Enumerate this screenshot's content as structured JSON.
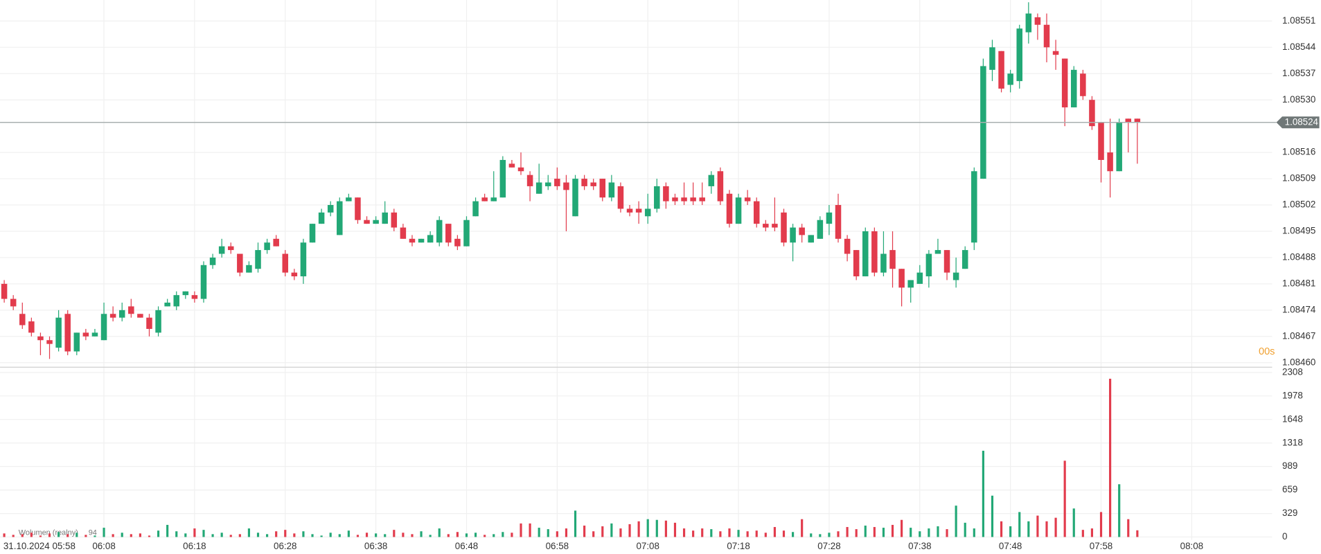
{
  "chart_data": [
    {
      "type": "candlestick",
      "up_color": "#22a876",
      "down_color": "#e23b4c",
      "ylim": [
        1.084588,
        1.085566
      ],
      "yticks": [
        {
          "value": 1.0846,
          "label": "1.08460"
        },
        1.08467,
        1.08474,
        1.08481,
        1.08488,
        1.08495,
        1.08502,
        1.08509,
        1.08516,
        {
          "value": 1.0853,
          "label": "1.08530"
        },
        1.08537,
        1.08544,
        1.08551
      ],
      "xticks": [
        {
          "value": 11,
          "label": "06:08"
        },
        {
          "value": 21,
          "label": "06:18"
        },
        {
          "value": 31,
          "label": "06:28"
        },
        {
          "value": 41,
          "label": "06:38"
        },
        {
          "value": 51,
          "label": "06:48"
        },
        {
          "value": 61,
          "label": "06:58"
        },
        {
          "value": 71,
          "label": "07:08"
        },
        {
          "value": 81,
          "label": "07:18"
        },
        {
          "value": 91,
          "label": "07:28"
        },
        {
          "value": 101,
          "label": "07:38"
        },
        {
          "value": 111,
          "label": "07:48"
        },
        {
          "value": 121,
          "label": "07:58"
        },
        {
          "value": 131,
          "label": "08:08"
        }
      ],
      "grid": true,
      "last_price": 1.08524,
      "countdown": "00s",
      "date_label": "31.10.2024 05:58",
      "ohlc": [
        [
          1.08481,
          1.08482,
          1.08476,
          1.08477
        ],
        [
          1.08477,
          1.08478,
          1.08474,
          1.08475
        ],
        [
          1.08473,
          1.08476,
          1.08469,
          1.0847
        ],
        [
          1.08471,
          1.08472,
          1.08467,
          1.08468
        ],
        [
          1.08467,
          1.08468,
          1.08462,
          1.08466
        ],
        [
          1.08466,
          1.08467,
          1.08461,
          1.08465
        ],
        [
          1.08464,
          1.08474,
          1.08463,
          1.08472
        ],
        [
          1.08473,
          1.08474,
          1.08462,
          1.08463
        ],
        [
          1.08463,
          1.08468,
          1.08462,
          1.08468
        ],
        [
          1.08468,
          1.08469,
          1.08466,
          1.08467
        ],
        [
          1.08467,
          1.08469,
          1.08467,
          1.08468
        ],
        [
          1.08466,
          1.08476,
          1.08466,
          1.08473
        ],
        [
          1.08473,
          1.08475,
          1.08471,
          1.08472
        ],
        [
          1.08472,
          1.08476,
          1.08471,
          1.08474
        ],
        [
          1.08475,
          1.08477,
          1.08472,
          1.08473
        ],
        [
          1.08473,
          1.08473,
          1.08472,
          1.08472
        ],
        [
          1.08472,
          1.08473,
          1.08467,
          1.08469
        ],
        [
          1.08468,
          1.08475,
          1.08467,
          1.08474
        ],
        [
          1.08475,
          1.08477,
          1.08475,
          1.08476
        ],
        [
          1.08475,
          1.08479,
          1.08474,
          1.08478
        ],
        [
          1.08478,
          1.08479,
          1.08477,
          1.08479
        ],
        [
          1.08478,
          1.08479,
          1.08476,
          1.08477
        ],
        [
          1.08477,
          1.08487,
          1.08476,
          1.08486
        ],
        [
          1.08486,
          1.08489,
          1.08485,
          1.08488
        ],
        [
          1.08489,
          1.08493,
          1.08488,
          1.08491
        ],
        [
          1.08491,
          1.08492,
          1.08489,
          1.0849
        ],
        [
          1.08489,
          1.08489,
          1.08483,
          1.08484
        ],
        [
          1.08484,
          1.08487,
          1.08484,
          1.08486
        ],
        [
          1.08485,
          1.08492,
          1.08484,
          1.0849
        ],
        [
          1.0849,
          1.08493,
          1.08489,
          1.08492
        ],
        [
          1.08493,
          1.08494,
          1.08491,
          1.08491
        ],
        [
          1.08489,
          1.0849,
          1.08483,
          1.08484
        ],
        [
          1.08484,
          1.08485,
          1.08482,
          1.08483
        ],
        [
          1.08483,
          1.08493,
          1.08481,
          1.08492
        ],
        [
          1.08492,
          1.08497,
          1.08492,
          1.08497
        ],
        [
          1.08497,
          1.08501,
          1.08497,
          1.085
        ],
        [
          1.085,
          1.08503,
          1.08499,
          1.08502
        ],
        [
          1.08494,
          1.08504,
          1.08494,
          1.08503
        ],
        [
          1.08503,
          1.08505,
          1.08503,
          1.08504
        ],
        [
          1.08504,
          1.08504,
          1.08497,
          1.08498
        ],
        [
          1.08498,
          1.08499,
          1.08497,
          1.08497
        ],
        [
          1.08497,
          1.08499,
          1.08497,
          1.08498
        ],
        [
          1.08497,
          1.08503,
          1.08497,
          1.085
        ],
        [
          1.085,
          1.08501,
          1.08495,
          1.08496
        ],
        [
          1.08496,
          1.08497,
          1.08493,
          1.08493
        ],
        [
          1.08493,
          1.08494,
          1.08491,
          1.08492
        ],
        [
          1.08492,
          1.08493,
          1.08492,
          1.08493
        ],
        [
          1.08492,
          1.08495,
          1.08492,
          1.08494
        ],
        [
          1.08492,
          1.08499,
          1.08491,
          1.08498
        ],
        [
          1.08497,
          1.08497,
          1.08491,
          1.08492
        ],
        [
          1.08493,
          1.08494,
          1.0849,
          1.08491
        ],
        [
          1.08491,
          1.08499,
          1.08491,
          1.08498
        ],
        [
          1.08499,
          1.08504,
          1.08499,
          1.08503
        ],
        [
          1.08504,
          1.08505,
          1.08503,
          1.08503
        ],
        [
          1.08503,
          1.08511,
          1.08503,
          1.08504
        ],
        [
          1.08504,
          1.08515,
          1.08504,
          1.08514
        ],
        [
          1.08513,
          1.08514,
          1.08512,
          1.08512
        ],
        [
          1.08512,
          1.08516,
          1.0851,
          1.08511
        ],
        [
          1.0851,
          1.08511,
          1.08503,
          1.08507
        ],
        [
          1.08505,
          1.08513,
          1.08505,
          1.08508
        ],
        [
          1.08507,
          1.0851,
          1.08506,
          1.08508
        ],
        [
          1.08509,
          1.08512,
          1.08506,
          1.08507
        ],
        [
          1.08508,
          1.0851,
          1.08495,
          1.08506
        ],
        [
          1.08499,
          1.0851,
          1.08499,
          1.08509
        ],
        [
          1.08509,
          1.0851,
          1.08506,
          1.08507
        ],
        [
          1.08508,
          1.08509,
          1.08506,
          1.08507
        ],
        [
          1.08509,
          1.08509,
          1.08503,
          1.08504
        ],
        [
          1.08504,
          1.0851,
          1.08503,
          1.08508
        ],
        [
          1.08507,
          1.08508,
          1.085,
          1.08501
        ],
        [
          1.08501,
          1.08502,
          1.08499,
          1.085
        ],
        [
          1.08501,
          1.08503,
          1.08497,
          1.085
        ],
        [
          1.08499,
          1.08505,
          1.08497,
          1.08501
        ],
        [
          1.08501,
          1.08509,
          1.085,
          1.08507
        ],
        [
          1.08507,
          1.08508,
          1.08501,
          1.08503
        ],
        [
          1.08504,
          1.08505,
          1.08502,
          1.08503
        ],
        [
          1.08504,
          1.08508,
          1.08502,
          1.08503
        ],
        [
          1.08504,
          1.08508,
          1.08502,
          1.08503
        ],
        [
          1.08504,
          1.08508,
          1.08502,
          1.08503
        ],
        [
          1.08507,
          1.08511,
          1.08505,
          1.0851
        ],
        [
          1.08511,
          1.08512,
          1.08502,
          1.08503
        ],
        [
          1.08505,
          1.08506,
          1.08496,
          1.08497
        ],
        [
          1.08497,
          1.08505,
          1.08497,
          1.08504
        ],
        [
          1.08504,
          1.08506,
          1.08502,
          1.08503
        ],
        [
          1.08503,
          1.08504,
          1.08496,
          1.08497
        ],
        [
          1.08497,
          1.08498,
          1.08495,
          1.08496
        ],
        [
          1.08497,
          1.08504,
          1.08495,
          1.08496
        ],
        [
          1.085,
          1.08501,
          1.08491,
          1.08492
        ],
        [
          1.08492,
          1.08497,
          1.08487,
          1.08496
        ],
        [
          1.08496,
          1.08497,
          1.08492,
          1.08494
        ],
        [
          1.08492,
          1.08494,
          1.08492,
          1.08494
        ],
        [
          1.08493,
          1.08499,
          1.08493,
          1.08498
        ],
        [
          1.08497,
          1.08502,
          1.08494,
          1.085
        ],
        [
          1.08502,
          1.08505,
          1.08492,
          1.08493
        ],
        [
          1.08493,
          1.08494,
          1.08487,
          1.08489
        ],
        [
          1.0849,
          1.0849,
          1.08482,
          1.08483
        ],
        [
          1.08483,
          1.08496,
          1.08483,
          1.08495
        ],
        [
          1.08495,
          1.08496,
          1.08483,
          1.08484
        ],
        [
          1.08484,
          1.08495,
          1.08483,
          1.08489
        ],
        [
          1.0849,
          1.08495,
          1.0848,
          1.08485
        ],
        [
          1.08485,
          1.08485,
          1.08475,
          1.0848
        ],
        [
          1.0848,
          1.08482,
          1.08476,
          1.08482
        ],
        [
          1.08481,
          1.08486,
          1.08481,
          1.08484
        ],
        [
          1.08483,
          1.0849,
          1.0848,
          1.08489
        ],
        [
          1.08489,
          1.08493,
          1.08489,
          1.0849
        ],
        [
          1.0849,
          1.0849,
          1.08482,
          1.08484
        ],
        [
          1.08482,
          1.08488,
          1.0848,
          1.08484
        ],
        [
          1.08485,
          1.08491,
          1.08485,
          1.0849
        ],
        [
          1.08492,
          1.08512,
          1.0849,
          1.08511
        ],
        [
          1.08509,
          1.08541,
          1.08509,
          1.08539
        ],
        [
          1.08538,
          1.08546,
          1.08535,
          1.08544
        ],
        [
          1.08543,
          1.08543,
          1.08532,
          1.08533
        ],
        [
          1.08534,
          1.08538,
          1.08532,
          1.08537
        ],
        [
          1.08535,
          1.0855,
          1.08533,
          1.08549
        ],
        [
          1.08548,
          1.08556,
          1.08545,
          1.08553
        ],
        [
          1.08552,
          1.08553,
          1.08546,
          1.0855
        ],
        [
          1.0855,
          1.08553,
          1.0854,
          1.08544
        ],
        [
          1.08543,
          1.08546,
          1.08538,
          1.08542
        ],
        [
          1.08541,
          1.08541,
          1.08523,
          1.08528
        ],
        [
          1.08528,
          1.08539,
          1.08528,
          1.08538
        ],
        [
          1.08537,
          1.08538,
          1.0853,
          1.08531
        ],
        [
          1.0853,
          1.08531,
          1.08522,
          1.08523
        ],
        [
          1.08524,
          1.08524,
          1.08508,
          1.08514
        ],
        [
          1.08516,
          1.08525,
          1.08504,
          1.08511
        ],
        [
          1.08511,
          1.08525,
          1.08511,
          1.08524
        ],
        [
          1.08525,
          1.08525,
          1.08516,
          1.08524
        ],
        [
          1.08525,
          1.08525,
          1.08513,
          1.08524
        ]
      ]
    },
    {
      "type": "bar",
      "title": "Wolumen (realny)",
      "ylim": [
        -40,
        2370
      ],
      "yticks": [
        0,
        329,
        659,
        989,
        1318,
        1648,
        1978,
        2308
      ],
      "values": [
        50,
        30,
        40,
        60,
        20,
        50,
        70,
        40,
        60,
        30,
        20,
        130,
        40,
        60,
        40,
        50,
        20,
        90,
        170,
        80,
        50,
        120,
        100,
        40,
        60,
        30,
        40,
        120,
        60,
        40,
        80,
        100,
        50,
        80,
        40,
        20,
        60,
        40,
        90,
        30,
        60,
        50,
        40,
        100,
        60,
        40,
        80,
        30,
        120,
        40,
        70,
        50,
        60,
        30,
        40,
        70,
        60,
        190,
        190,
        130,
        110,
        80,
        120,
        370,
        160,
        80,
        150,
        190,
        120,
        180,
        220,
        250,
        240,
        230,
        200,
        120,
        90,
        120,
        110,
        80,
        120,
        100,
        80,
        90,
        60,
        140,
        90,
        70,
        250,
        50,
        40,
        60,
        80,
        140,
        110,
        160,
        140,
        130,
        170,
        240,
        130,
        80,
        120,
        150,
        110,
        440,
        200,
        120,
        1210,
        580,
        220,
        150,
        350,
        220,
        300,
        220,
        270,
        1070,
        400,
        100,
        120,
        350,
        2220,
        740,
        250,
        94
      ]
    }
  ]
}
